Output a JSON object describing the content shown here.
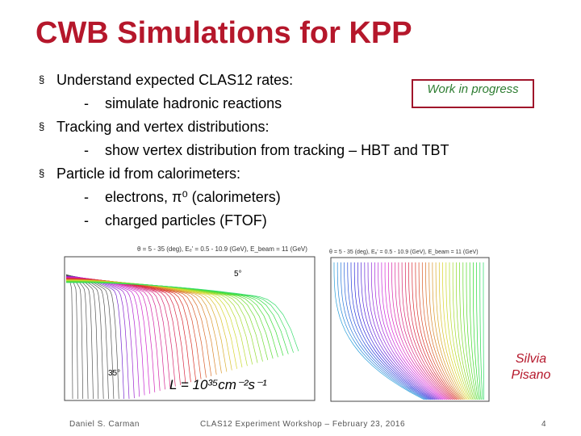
{
  "header": {
    "title": "CWB Simulations for KPP"
  },
  "bullets": [
    {
      "text": "Understand expected CLAS12 rates:",
      "subitems": [
        "simulate hadronic reactions"
      ]
    },
    {
      "text": "Tracking and vertex distributions:",
      "subitems": [
        "show vertex distribution from tracking – HBT and TBT"
      ]
    },
    {
      "text": "Particle id from calorimeters:",
      "subitems": [
        "electrons, π⁰ (calorimeters)",
        "charged particles (FTOF)"
      ]
    }
  ],
  "callout": "Work in progress",
  "plots": [
    {
      "caption": "θ = 5 - 35 (deg), Eₑ' = 0.5 - 10.9 (GeV), E_beam = 11 (GeV)",
      "labels": [
        "5°",
        "35°"
      ],
      "formula": "L = 10³⁵cm⁻²s⁻¹"
    },
    {
      "caption": "θ = 5 - 35 (deg), Eₑ' = 0.5 - 10.9 (GeV), E_beam = 11 (GeV)",
      "labels": []
    }
  ],
  "credit": "Silvia Pisano",
  "footer": {
    "author": "Daniel S. Carman",
    "event": "CLAS12 Experiment Workshop – February 23, 2016",
    "page": "4"
  }
}
